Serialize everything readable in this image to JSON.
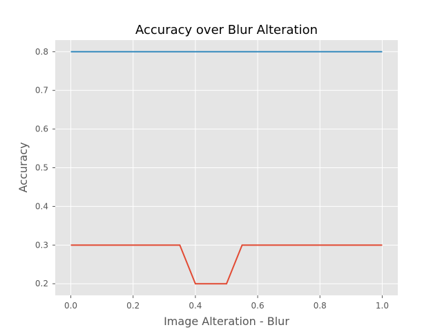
{
  "chart_data": {
    "type": "line",
    "title": "Accuracy over Blur Alteration",
    "xlabel": "Image Alteration - Blur",
    "ylabel": "Accuracy",
    "xlim": [
      -0.05,
      1.05
    ],
    "ylim": [
      0.17,
      0.83
    ],
    "xticks": [
      0.0,
      0.2,
      0.4,
      0.6,
      0.8,
      1.0
    ],
    "xtick_labels": [
      "0.0",
      "0.2",
      "0.4",
      "0.6",
      "0.8",
      "1.0"
    ],
    "yticks": [
      0.2,
      0.3,
      0.4,
      0.5,
      0.6,
      0.7,
      0.8
    ],
    "ytick_labels": [
      "0.2",
      "0.3",
      "0.4",
      "0.5",
      "0.6",
      "0.7",
      "0.8"
    ],
    "grid": true,
    "background": "#e5e5e5",
    "series": [
      {
        "color": "#348abd",
        "x": [
          0.0,
          1.0
        ],
        "y": [
          0.8,
          0.8
        ]
      },
      {
        "color": "#e24a33",
        "x": [
          0.0,
          0.35,
          0.4,
          0.5,
          0.55,
          1.0
        ],
        "y": [
          0.3,
          0.3,
          0.2,
          0.2,
          0.3,
          0.3
        ]
      }
    ]
  }
}
